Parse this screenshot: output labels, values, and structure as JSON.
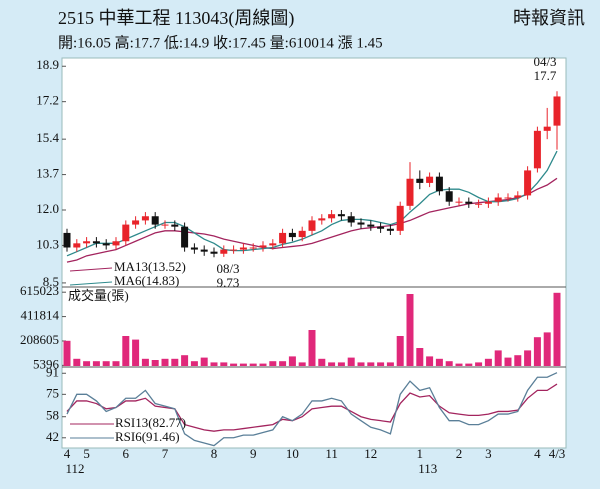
{
  "header": {
    "title": "2515  中華工程 113043(周線圖)",
    "source": "時報資訊",
    "quote": "開:16.05 高:17.7 低:14.9 收:17.45 量:610014 漲 1.45"
  },
  "chart_data": [
    {
      "type": "candlestick",
      "categories": [
        "4",
        null,
        "5",
        null,
        null,
        null,
        "6",
        null,
        null,
        null,
        "7",
        null,
        null,
        null,
        null,
        "8",
        null,
        null,
        null,
        "9",
        null,
        null,
        null,
        "10",
        null,
        null,
        null,
        "11",
        null,
        null,
        null,
        "12",
        null,
        null,
        null,
        null,
        "1",
        null,
        null,
        null,
        "2",
        null,
        null,
        "3",
        null,
        null,
        null,
        null,
        "4",
        null,
        "4/3"
      ],
      "year_labels": [
        "112",
        null,
        null,
        null,
        null,
        null,
        null,
        null,
        null,
        null,
        null,
        null,
        null,
        null,
        null,
        null,
        null,
        null,
        null,
        null,
        null,
        null,
        null,
        null,
        null,
        null,
        null,
        null,
        null,
        null,
        null,
        null,
        null,
        null,
        null,
        null,
        "113",
        null,
        null,
        null,
        null,
        null,
        null,
        null,
        null,
        null,
        null,
        null,
        null,
        null,
        null
      ],
      "open": [
        10.9,
        10.2,
        10.4,
        10.5,
        10.4,
        10.3,
        10.5,
        11.3,
        11.5,
        11.7,
        11.3,
        11.3,
        11.2,
        10.2,
        10.1,
        10.0,
        9.9,
        10.1,
        10.1,
        10.2,
        10.2,
        10.3,
        10.4,
        10.9,
        10.7,
        11.0,
        11.5,
        11.6,
        11.8,
        11.7,
        11.4,
        11.3,
        11.2,
        11.1,
        11.0,
        12.2,
        13.5,
        13.3,
        13.6,
        12.9,
        12.4,
        12.4,
        12.3,
        12.3,
        12.4,
        12.6,
        12.6,
        12.7,
        14.0,
        15.8,
        16.05
      ],
      "high": [
        11.1,
        10.6,
        10.7,
        10.7,
        10.6,
        10.7,
        11.5,
        11.7,
        11.9,
        11.9,
        11.5,
        11.5,
        11.4,
        10.4,
        10.3,
        10.2,
        10.3,
        10.3,
        10.4,
        10.4,
        10.5,
        10.6,
        11.1,
        11.1,
        11.2,
        11.7,
        11.8,
        12.0,
        12.0,
        11.9,
        11.6,
        11.5,
        11.4,
        11.3,
        12.4,
        14.3,
        13.9,
        13.8,
        13.8,
        13.1,
        12.6,
        12.6,
        12.5,
        12.6,
        12.8,
        12.8,
        12.9,
        14.1,
        16.0,
        16.9,
        17.7
      ],
      "low": [
        10.0,
        10.0,
        10.2,
        10.2,
        10.1,
        10.1,
        10.3,
        11.1,
        11.3,
        11.1,
        11.1,
        11.0,
        10.0,
        9.9,
        9.8,
        9.73,
        9.75,
        9.9,
        9.9,
        10.0,
        10.0,
        10.1,
        10.2,
        10.5,
        10.5,
        10.8,
        11.3,
        11.4,
        11.5,
        11.2,
        11.1,
        11.0,
        10.9,
        10.8,
        10.8,
        12.0,
        13.0,
        13.1,
        12.7,
        12.2,
        12.2,
        12.1,
        12.1,
        12.1,
        12.2,
        12.4,
        12.4,
        12.5,
        13.8,
        15.4,
        14.9
      ],
      "close": [
        10.2,
        10.4,
        10.5,
        10.4,
        10.3,
        10.5,
        11.3,
        11.5,
        11.7,
        11.3,
        11.3,
        11.2,
        10.2,
        10.1,
        10.0,
        9.9,
        10.1,
        10.1,
        10.2,
        10.2,
        10.3,
        10.4,
        10.9,
        10.7,
        11.0,
        11.5,
        11.6,
        11.8,
        11.7,
        11.4,
        11.3,
        11.2,
        11.1,
        11.0,
        12.2,
        13.5,
        13.3,
        13.6,
        12.9,
        12.4,
        12.4,
        12.3,
        12.3,
        12.4,
        12.6,
        12.6,
        12.7,
        13.9,
        15.8,
        16.0,
        17.45
      ],
      "up_color": "#e8232a",
      "down_color": "#111111",
      "series": [
        {
          "name": "MA13(13.52)",
          "color": "#a3245e",
          "values": [
            9.5,
            9.6,
            9.8,
            9.9,
            10.0,
            10.1,
            10.3,
            10.5,
            10.7,
            10.9,
            11.0,
            11.0,
            10.95,
            10.9,
            10.85,
            10.75,
            10.6,
            10.5,
            10.4,
            10.3,
            10.2,
            10.15,
            10.2,
            10.25,
            10.3,
            10.4,
            10.55,
            10.7,
            10.85,
            11.0,
            11.1,
            11.15,
            11.2,
            11.25,
            11.35,
            11.5,
            11.7,
            11.9,
            12.0,
            12.1,
            12.2,
            12.3,
            12.35,
            12.4,
            12.45,
            12.5,
            12.6,
            12.75,
            13.0,
            13.2,
            13.52
          ]
        },
        {
          "name": "MA6(14.83)",
          "color": "#2e8a8c",
          "values": [
            9.8,
            10.0,
            10.2,
            10.4,
            10.4,
            10.4,
            10.6,
            10.8,
            11.0,
            11.2,
            11.4,
            11.4,
            11.2,
            10.9,
            10.6,
            10.4,
            10.1,
            10.05,
            10.05,
            10.1,
            10.15,
            10.2,
            10.35,
            10.45,
            10.6,
            10.8,
            11.0,
            11.3,
            11.5,
            11.55,
            11.55,
            11.5,
            11.4,
            11.3,
            11.45,
            11.9,
            12.3,
            12.75,
            12.95,
            13.0,
            13.0,
            12.85,
            12.6,
            12.4,
            12.4,
            12.45,
            12.55,
            12.8,
            13.3,
            13.9,
            14.83
          ]
        }
      ],
      "annotations": [
        "04/3",
        "17.7",
        "08/3",
        "9.73"
      ],
      "ylim": [
        8.4,
        19.2
      ],
      "yticks": [
        18.9,
        17.2,
        15.4,
        13.7,
        {
          "value": 12,
          "label": "12.0"
        },
        10.3,
        8.5
      ]
    },
    {
      "type": "bar",
      "title": "成交量(張)",
      "color": "#e0287a",
      "values": [
        210000,
        60000,
        40000,
        40000,
        40000,
        40000,
        250000,
        220000,
        60000,
        50000,
        60000,
        60000,
        90000,
        40000,
        70000,
        30000,
        30000,
        20000,
        20000,
        20000,
        20000,
        40000,
        40000,
        80000,
        30000,
        300000,
        60000,
        30000,
        30000,
        70000,
        30000,
        30000,
        30000,
        30000,
        250000,
        600000,
        150000,
        80000,
        60000,
        40000,
        20000,
        20000,
        30000,
        60000,
        130000,
        70000,
        90000,
        130000,
        240000,
        280000,
        610014
      ],
      "ylim": [
        0,
        650000
      ],
      "yticks": [
        615023,
        411814,
        208605,
        5396
      ]
    },
    {
      "type": "line",
      "series": [
        {
          "name": "RSI13(82.77)",
          "color": "#a3245e",
          "values": [
            62,
            70,
            70,
            68,
            64,
            65,
            70,
            70,
            72,
            66,
            65,
            64,
            52,
            50,
            48,
            47,
            48,
            48,
            49,
            50,
            51,
            52,
            56,
            55,
            58,
            64,
            65,
            66,
            66,
            62,
            58,
            56,
            55,
            54,
            68,
            76,
            73,
            74,
            66,
            61,
            60,
            59,
            59,
            60,
            62,
            62,
            63,
            72,
            78,
            78,
            82.77
          ]
        },
        {
          "name": "RSI6(91.46)",
          "color": "#5a7f98",
          "values": [
            60,
            75,
            75,
            70,
            62,
            65,
            72,
            72,
            78,
            68,
            66,
            64,
            45,
            40,
            38,
            36,
            42,
            42,
            44,
            44,
            46,
            48,
            58,
            55,
            60,
            70,
            70,
            72,
            70,
            60,
            55,
            50,
            48,
            45,
            75,
            85,
            78,
            80,
            65,
            55,
            55,
            52,
            52,
            55,
            60,
            60,
            62,
            78,
            88,
            88,
            91.46
          ]
        }
      ],
      "ylim": [
        35,
        95
      ],
      "yticks": [
        91,
        75,
        58,
        42
      ]
    }
  ]
}
